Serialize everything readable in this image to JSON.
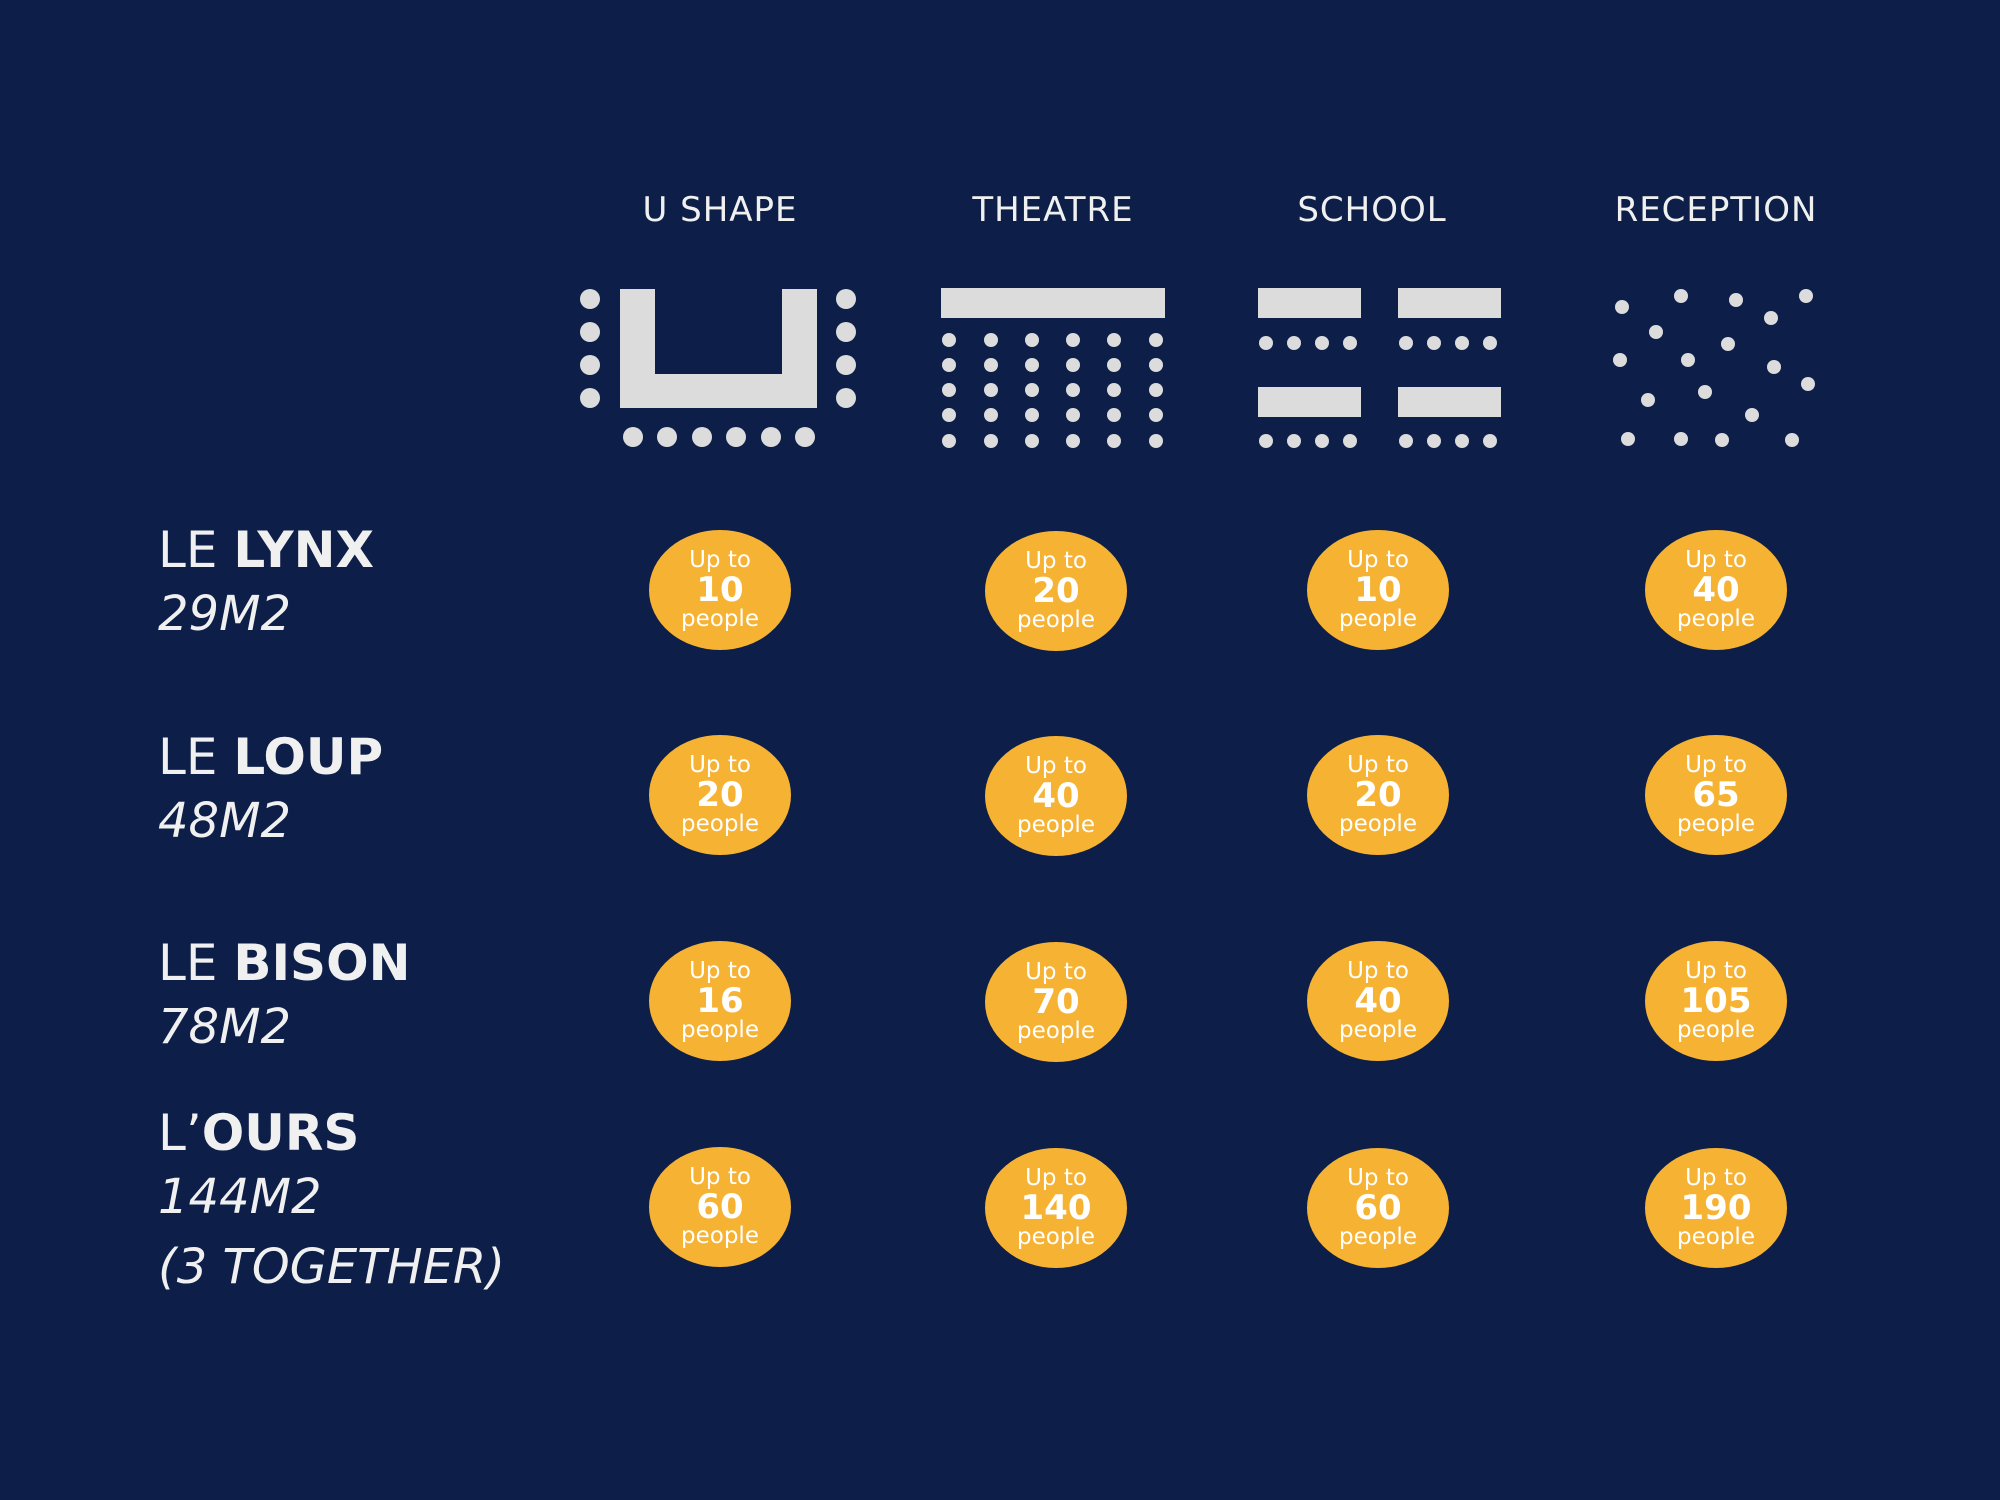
{
  "colors": {
    "background": "#0d1f48",
    "badge": "#f6b233",
    "icon": "#dcdcdc",
    "text": "#f0f0f0"
  },
  "layouts": [
    {
      "label": "U SHAPE",
      "icon": "u-shape-layout-icon"
    },
    {
      "label": "THEATRE",
      "icon": "theatre-layout-icon"
    },
    {
      "label": "SCHOOL",
      "icon": "school-layout-icon"
    },
    {
      "label": "RECEPTION",
      "icon": "reception-layout-icon"
    }
  ],
  "badge_text": {
    "prefix": "Up to",
    "suffix": "people"
  },
  "rooms": [
    {
      "prefix": "LE ",
      "name": "LYNX",
      "area": "29M2",
      "area_note": "",
      "capacities": [
        "10",
        "20",
        "10",
        "40"
      ]
    },
    {
      "prefix": "LE ",
      "name": "LOUP",
      "area": "48M2",
      "area_note": "",
      "capacities": [
        "20",
        "40",
        "20",
        "65"
      ]
    },
    {
      "prefix": "LE ",
      "name": "BISON",
      "area": "78M2",
      "area_note": "",
      "capacities": [
        "16",
        "70",
        "40",
        "105"
      ]
    },
    {
      "prefix": "L’",
      "name": "OURS",
      "area": "144M2",
      "area_note": "(3 TOGETHER)",
      "capacities": [
        "60",
        "140",
        "60",
        "190"
      ]
    }
  ]
}
